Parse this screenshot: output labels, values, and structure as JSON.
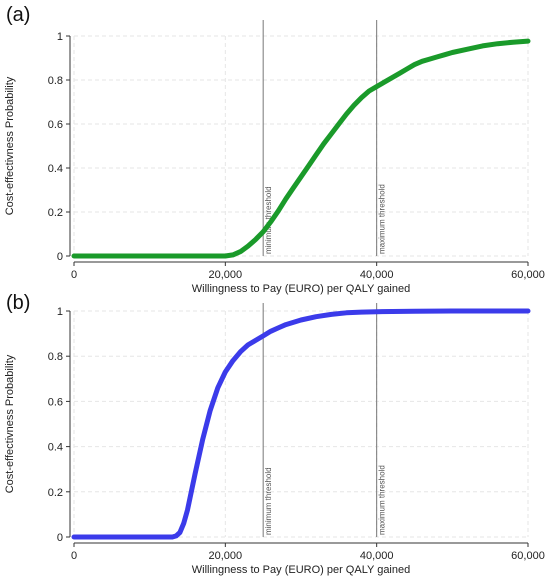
{
  "chart_data": [
    {
      "panel_label": "(a)",
      "type": "line",
      "xlabel": "Willingness to Pay (EURO) per QALY gained",
      "ylabel": "Cost-effectivness Probability",
      "xlim": [
        0,
        60000
      ],
      "ylim": [
        0,
        1
      ],
      "x_ticks": [
        0,
        20000,
        40000,
        60000
      ],
      "x_tick_labels": [
        "0",
        "20,000",
        "40,000",
        "60,000"
      ],
      "y_ticks": [
        0,
        0.2,
        0.4,
        0.6,
        0.8,
        1
      ],
      "y_tick_labels": [
        "0",
        "0.2",
        "0.4",
        "0.6",
        "0.8",
        "1"
      ],
      "grid": true,
      "series": [
        {
          "color": "#1a9a2a",
          "x": [
            0,
            10000,
            15000,
            20000,
            21000,
            22000,
            23000,
            24000,
            25000,
            26000,
            27000,
            28000,
            29000,
            30000,
            31000,
            32000,
            33000,
            34000,
            35000,
            36000,
            37000,
            38000,
            39000,
            40000,
            41000,
            42000,
            43000,
            44000,
            45000,
            46000,
            47000,
            48000,
            49000,
            50000,
            52000,
            54000,
            56000,
            58000,
            60000
          ],
          "y": [
            0,
            0,
            0,
            0,
            0.005,
            0.02,
            0.045,
            0.075,
            0.11,
            0.155,
            0.205,
            0.26,
            0.31,
            0.36,
            0.41,
            0.46,
            0.51,
            0.555,
            0.6,
            0.645,
            0.685,
            0.72,
            0.75,
            0.77,
            0.79,
            0.81,
            0.83,
            0.85,
            0.87,
            0.885,
            0.895,
            0.905,
            0.915,
            0.925,
            0.94,
            0.955,
            0.965,
            0.972,
            0.977
          ]
        }
      ],
      "reference_lines": [
        {
          "x": 25000,
          "label": "minimum threshold"
        },
        {
          "x": 40000,
          "label": "maximum threshold"
        }
      ]
    },
    {
      "panel_label": "(b)",
      "type": "line",
      "xlabel": "Willingness to Pay (EURO) per QALY gained",
      "ylabel": "Cost-effectivness Probability",
      "xlim": [
        0,
        60000
      ],
      "ylim": [
        0,
        1
      ],
      "x_ticks": [
        0,
        20000,
        40000,
        60000
      ],
      "x_tick_labels": [
        "0",
        "20,000",
        "40,000",
        "60,000"
      ],
      "y_ticks": [
        0,
        0.2,
        0.4,
        0.6,
        0.8,
        1
      ],
      "y_tick_labels": [
        "0",
        "0.2",
        "0.4",
        "0.6",
        "0.8",
        "1"
      ],
      "grid": true,
      "series": [
        {
          "color": "#3b3bea",
          "x": [
            0,
            10000,
            13000,
            13500,
            14000,
            14500,
            15000,
            16000,
            17000,
            18000,
            19000,
            20000,
            21000,
            22000,
            23000,
            24000,
            25000,
            26000,
            27000,
            28000,
            30000,
            32000,
            34000,
            36000,
            38000,
            40000,
            45000,
            50000,
            55000,
            60000
          ],
          "y": [
            0,
            0,
            0,
            0.005,
            0.02,
            0.06,
            0.12,
            0.28,
            0.43,
            0.56,
            0.66,
            0.73,
            0.78,
            0.82,
            0.85,
            0.87,
            0.89,
            0.91,
            0.925,
            0.94,
            0.96,
            0.975,
            0.985,
            0.992,
            0.995,
            0.997,
            0.999,
            1.0,
            1.0,
            1.0
          ]
        }
      ],
      "reference_lines": [
        {
          "x": 25000,
          "label": "minimum threshold"
        },
        {
          "x": 40000,
          "label": "maximum threshold"
        }
      ]
    }
  ]
}
